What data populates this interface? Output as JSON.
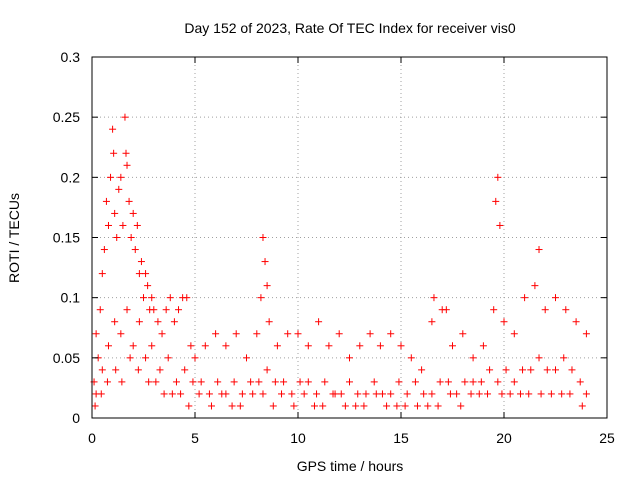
{
  "chart_data": {
    "type": "scatter",
    "title": "Day 152 of 2023, Rate Of TEC Index for receiver vis0",
    "xlabel": "GPS time / hours",
    "ylabel": "ROTI / TECUs",
    "xlim": [
      0,
      25
    ],
    "ylim": [
      0,
      0.3
    ],
    "x_ticks": [
      0,
      5,
      10,
      15,
      20,
      25
    ],
    "y_ticks": [
      0,
      0.05,
      0.1,
      0.15,
      0.2,
      0.25,
      0.3
    ],
    "x_tick_labels": [
      "0",
      "5",
      "10",
      "15",
      "20",
      "25"
    ],
    "y_tick_labels": [
      "0",
      "0.05",
      "0.1",
      "0.15",
      "0.2",
      "0.25",
      "0.3"
    ],
    "grid": true,
    "marker": "plus",
    "color": "#ff0000",
    "series": [
      {
        "x": [
          0.1,
          0.2,
          0.3,
          0.4,
          0.5,
          0.6,
          0.7,
          0.8,
          0.9,
          1.0,
          1.05,
          1.1,
          1.2,
          1.3,
          1.4,
          1.5,
          1.6,
          1.65,
          1.7,
          1.8,
          1.9,
          2.0,
          2.1,
          2.2,
          2.3,
          2.4,
          2.5,
          2.6,
          2.7,
          2.8,
          2.9,
          3.0,
          3.2,
          3.4,
          3.6,
          3.8,
          4.0,
          4.2,
          4.4,
          4.6,
          4.8,
          5.0,
          5.5,
          6.0,
          6.5,
          7.0,
          7.5,
          8.0,
          8.2,
          8.3,
          8.4,
          8.5,
          8.6,
          9.0,
          9.5,
          10.0,
          10.5,
          11.0,
          11.5,
          12.0,
          12.5,
          13.0,
          13.5,
          14.0,
          14.5,
          15.0,
          15.5,
          16.0,
          16.5,
          16.6,
          17.0,
          17.2,
          17.5,
          18.0,
          18.5,
          19.0,
          19.5,
          19.6,
          19.7,
          19.8,
          20.0,
          20.5,
          21.0,
          21.5,
          21.7,
          22.0,
          22.5,
          23.0,
          23.5,
          24.0
        ],
        "y": [
          0.03,
          0.07,
          0.05,
          0.09,
          0.12,
          0.14,
          0.18,
          0.16,
          0.2,
          0.24,
          0.22,
          0.17,
          0.15,
          0.19,
          0.2,
          0.16,
          0.25,
          0.22,
          0.21,
          0.18,
          0.15,
          0.17,
          0.14,
          0.16,
          0.12,
          0.13,
          0.1,
          0.12,
          0.11,
          0.09,
          0.1,
          0.09,
          0.08,
          0.07,
          0.09,
          0.1,
          0.08,
          0.09,
          0.1,
          0.1,
          0.06,
          0.05,
          0.06,
          0.07,
          0.06,
          0.07,
          0.05,
          0.07,
          0.1,
          0.15,
          0.13,
          0.11,
          0.08,
          0.06,
          0.07,
          0.07,
          0.06,
          0.08,
          0.06,
          0.07,
          0.05,
          0.06,
          0.07,
          0.06,
          0.07,
          0.06,
          0.05,
          0.04,
          0.08,
          0.1,
          0.09,
          0.09,
          0.06,
          0.07,
          0.05,
          0.06,
          0.09,
          0.18,
          0.2,
          0.16,
          0.08,
          0.07,
          0.1,
          0.11,
          0.14,
          0.09,
          0.1,
          0.09,
          0.08,
          0.07
        ]
      },
      {
        "x": [
          0.2,
          0.5,
          0.8,
          1.1,
          1.4,
          1.7,
          2.0,
          2.3,
          2.6,
          2.9,
          3.3,
          3.7,
          4.1,
          4.5,
          4.9,
          5.3,
          5.7,
          6.1,
          6.5,
          6.9,
          7.3,
          7.7,
          8.1,
          8.5,
          8.9,
          9.3,
          9.7,
          10.1,
          10.5,
          10.9,
          11.3,
          11.7,
          12.1,
          12.5,
          12.9,
          13.3,
          13.7,
          14.1,
          14.5,
          14.9,
          15.3,
          15.7,
          16.1,
          16.5,
          16.9,
          17.3,
          17.7,
          18.1,
          18.5,
          18.9,
          19.3,
          19.7,
          20.1,
          20.5,
          20.9,
          21.3,
          21.7,
          22.1,
          22.5,
          22.9,
          23.3,
          23.7,
          24.0
        ],
        "y": [
          0.02,
          0.04,
          0.06,
          0.08,
          0.07,
          0.09,
          0.06,
          0.08,
          0.05,
          0.06,
          0.04,
          0.05,
          0.03,
          0.04,
          0.03,
          0.03,
          0.02,
          0.03,
          0.02,
          0.03,
          0.02,
          0.03,
          0.03,
          0.04,
          0.03,
          0.03,
          0.02,
          0.03,
          0.03,
          0.02,
          0.03,
          0.02,
          0.02,
          0.03,
          0.02,
          0.02,
          0.03,
          0.02,
          0.02,
          0.03,
          0.02,
          0.03,
          0.02,
          0.02,
          0.03,
          0.03,
          0.02,
          0.03,
          0.03,
          0.03,
          0.04,
          0.03,
          0.04,
          0.03,
          0.04,
          0.04,
          0.05,
          0.04,
          0.04,
          0.05,
          0.04,
          0.03,
          0.02
        ]
      },
      {
        "x": [
          0.15,
          0.45,
          0.75,
          1.15,
          1.45,
          1.85,
          2.25,
          2.75,
          3.1,
          3.5,
          3.9,
          4.3,
          4.7,
          5.2,
          5.8,
          6.3,
          6.8,
          7.2,
          7.8,
          8.3,
          8.8,
          9.2,
          9.8,
          10.3,
          10.8,
          11.2,
          11.8,
          12.3,
          12.8,
          13.2,
          13.8,
          14.3,
          14.8,
          15.2,
          15.8,
          16.3,
          16.8,
          17.4,
          17.9,
          18.4,
          18.8,
          19.2,
          19.9,
          20.3,
          20.8,
          21.2,
          21.8,
          22.3,
          22.8,
          23.2,
          23.8
        ],
        "y": [
          0.01,
          0.02,
          0.03,
          0.04,
          0.03,
          0.05,
          0.04,
          0.03,
          0.03,
          0.02,
          0.02,
          0.02,
          0.01,
          0.02,
          0.01,
          0.02,
          0.01,
          0.01,
          0.02,
          0.02,
          0.01,
          0.02,
          0.01,
          0.02,
          0.01,
          0.01,
          0.02,
          0.01,
          0.01,
          0.01,
          0.02,
          0.01,
          0.01,
          0.01,
          0.01,
          0.01,
          0.01,
          0.02,
          0.01,
          0.02,
          0.02,
          0.02,
          0.02,
          0.02,
          0.02,
          0.02,
          0.02,
          0.02,
          0.02,
          0.02,
          0.01
        ]
      }
    ]
  }
}
